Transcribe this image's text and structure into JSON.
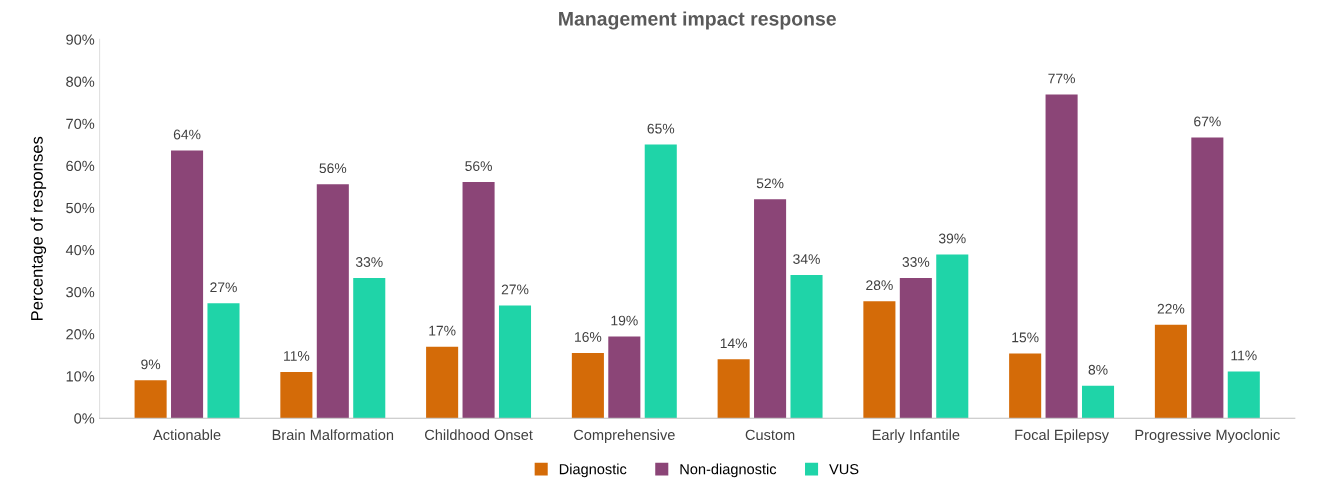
{
  "chart_data": {
    "type": "bar",
    "title": "Management impact response",
    "ylabel": "Percentage of responses",
    "categories": [
      "Actionable",
      "Brain Malformation",
      "Childhood Onset",
      "Comprehensive",
      "Custom",
      "Early Infantile",
      "Focal Epilepsy",
      "Progressive Myoclonic"
    ],
    "series": [
      {
        "name": "Diagnostic",
        "color": "#d46b08",
        "values": [
          9,
          11,
          17,
          15.5,
          14,
          27.8,
          15.4,
          22.2
        ],
        "value_labels": [
          "9%",
          "11%",
          "17%",
          "16%",
          "14%",
          "28%",
          "15%",
          "22%"
        ]
      },
      {
        "name": "Non-diagnostic",
        "color": "#8b4577",
        "values": [
          63.6,
          55.6,
          56.1,
          19.4,
          52,
          33.3,
          76.9,
          66.7
        ],
        "value_labels": [
          "64%",
          "56%",
          "56%",
          "19%",
          "52%",
          "33%",
          "77%",
          "67%"
        ]
      },
      {
        "name": "VUS",
        "color": "#1fd4a8",
        "values": [
          27.3,
          33.3,
          26.8,
          65,
          34,
          38.9,
          7.7,
          11.1
        ],
        "value_labels": [
          "27%",
          "33%",
          "27%",
          "65%",
          "34%",
          "39%",
          "8%",
          "11%"
        ]
      }
    ],
    "ylim": [
      0,
      90
    ],
    "yticks": [
      {
        "value": 0,
        "label": "0%"
      },
      {
        "value": 10,
        "label": "10%"
      },
      {
        "value": 20,
        "label": "20%"
      },
      {
        "value": 30,
        "label": "30%"
      },
      {
        "value": 40,
        "label": "40%"
      },
      {
        "value": 50,
        "label": "50%"
      },
      {
        "value": 60,
        "label": "60%"
      },
      {
        "value": 70,
        "label": "70%"
      },
      {
        "value": 80,
        "label": "80%"
      },
      {
        "value": 90,
        "label": "90%"
      }
    ],
    "legend": "bottom",
    "grid": false
  }
}
